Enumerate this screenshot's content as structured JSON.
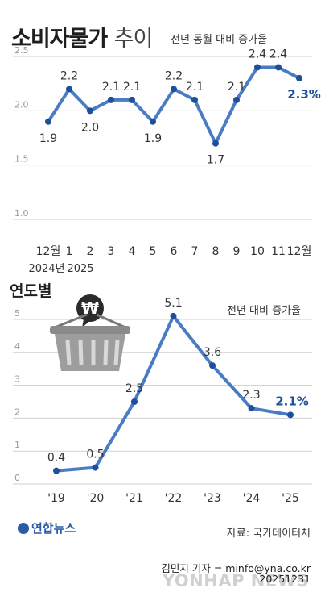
{
  "header": {
    "title": "소비자물가",
    "title_suffix": "추이",
    "subtitle": "전년 동월 대비 증가율"
  },
  "section2": {
    "title": "연도별",
    "unit": "전년 대비 증가율"
  },
  "footer": {
    "source": "자료: 국가데이터처",
    "credit": "김민지 기자 = minfo@yna.co.kr",
    "date": "20251231",
    "brand": "연합뉴스",
    "watermark": "YONHAP NEWS"
  },
  "colors": {
    "line": "#4a7cc4",
    "marker": "#1d4f9a",
    "grid": "#cfcfcf",
    "tick": "#9a9a9a"
  },
  "chart_data": [
    {
      "type": "line",
      "title": "소비자물가 추이",
      "subtitle": "전년 동월 대비 증가율",
      "categories": [
        "12월",
        "1",
        "2",
        "3",
        "4",
        "5",
        "6",
        "7",
        "8",
        "9",
        "10",
        "11",
        "12월"
      ],
      "year_labels": [
        "2024년",
        "2025"
      ],
      "values": [
        1.9,
        2.2,
        2.0,
        2.1,
        2.1,
        1.9,
        2.2,
        2.1,
        1.7,
        2.1,
        2.4,
        2.4,
        2.3
      ],
      "value_labels": [
        "1.9",
        "2.2",
        "2.0",
        "2.1",
        "2.1",
        "1.9",
        "2.2",
        "2.1",
        "1.7",
        "2.1",
        "2.4",
        "2.4",
        "2.3%"
      ],
      "yticks": [
        "2.5",
        "2.0",
        "1.5",
        "1.0"
      ],
      "ylim": [
        1.0,
        2.5
      ],
      "grid": true
    },
    {
      "type": "line",
      "title": "연도별",
      "subtitle": "전년 대비 증가율",
      "categories": [
        "'19",
        "'20",
        "'21",
        "'22",
        "'23",
        "'24",
        "'25"
      ],
      "values": [
        0.4,
        0.5,
        2.5,
        5.1,
        3.6,
        2.3,
        2.1
      ],
      "value_labels": [
        "0.4",
        "0.5",
        "2.5",
        "5.1",
        "3.6",
        "2.3",
        "2.1%"
      ],
      "yticks": [
        "0",
        "1",
        "2",
        "3",
        "4",
        "5"
      ],
      "ylim": [
        0,
        5
      ],
      "grid": true
    }
  ]
}
